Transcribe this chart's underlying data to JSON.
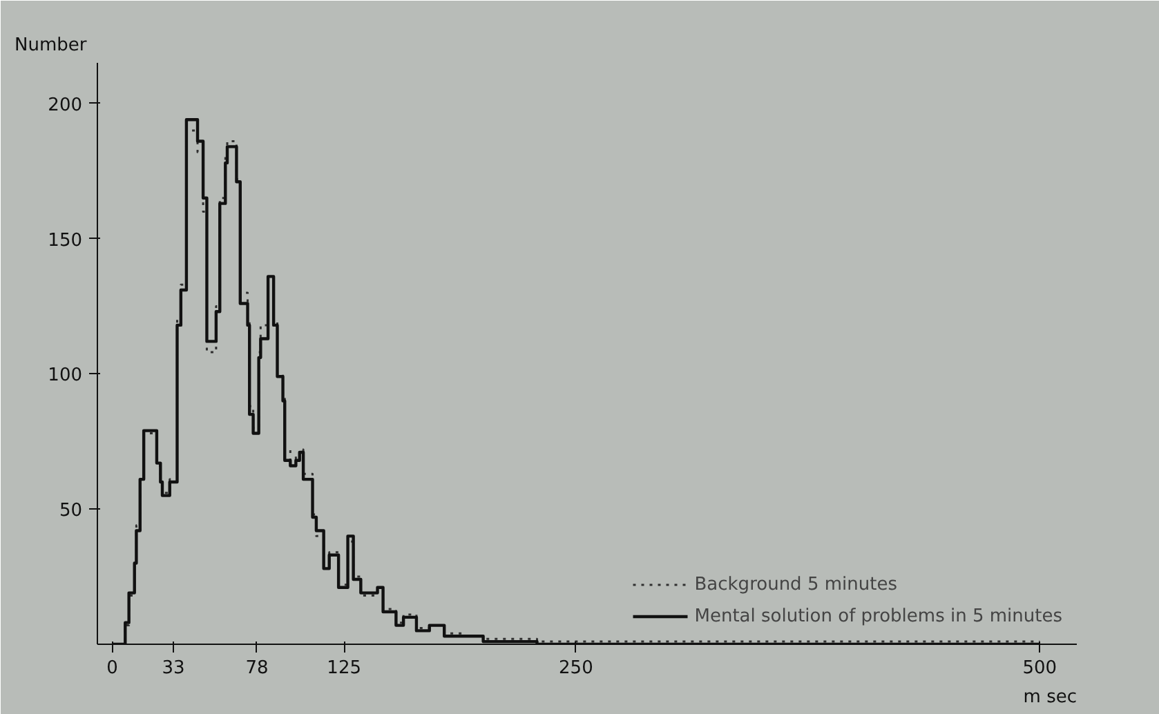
{
  "chart_data": {
    "type": "step",
    "xlabel": "m sec",
    "ylabel": "Number",
    "x": [
      0,
      4,
      7,
      9,
      12,
      13,
      15,
      17,
      24,
      26,
      27,
      31,
      35,
      37,
      40,
      46,
      49,
      51,
      56,
      58,
      61,
      62,
      67,
      69,
      73,
      74,
      76,
      79,
      80,
      84,
      87,
      89,
      92,
      93,
      96,
      99,
      101,
      103,
      108,
      110,
      114,
      117,
      122,
      127,
      130,
      134,
      143,
      146,
      153,
      157,
      164,
      171,
      179,
      189,
      200,
      229,
      260,
      300,
      350,
      400,
      450,
      500
    ],
    "series": [
      {
        "name": "Background 5 minutes",
        "color": "#303030",
        "line_style": "dotted",
        "values": [
          0,
          0,
          7,
          18,
          30,
          44,
          62,
          78,
          66,
          60,
          56,
          61,
          120,
          133,
          190,
          182,
          160,
          108,
          125,
          165,
          182,
          186,
          172,
          130,
          120,
          88,
          80,
          108,
          118,
          130,
          120,
          100,
          92,
          72,
          68,
          70,
          72,
          63,
          48,
          40,
          30,
          34,
          22,
          38,
          25,
          18,
          20,
          13,
          8,
          11,
          6,
          7,
          4,
          3,
          2,
          1,
          1,
          1,
          1,
          1,
          1,
          1
        ]
      },
      {
        "name": "Mental solution of problems in 5 minutes",
        "color": "#111111",
        "line_style": "solid",
        "values": [
          0,
          0,
          8,
          19,
          30,
          42,
          61,
          79,
          67,
          60,
          55,
          60,
          118,
          131,
          194,
          186,
          165,
          112,
          123,
          163,
          178,
          184,
          171,
          126,
          118,
          85,
          78,
          106,
          113,
          136,
          118,
          99,
          90,
          68,
          66,
          68,
          71,
          61,
          47,
          42,
          28,
          33,
          21,
          40,
          24,
          19,
          21,
          12,
          7,
          10,
          5,
          7,
          3,
          3,
          1,
          0,
          0,
          0,
          0,
          0,
          0,
          0
        ]
      }
    ],
    "xlim": [
      -8,
      520
    ],
    "ylim": [
      0,
      215
    ],
    "xticks": [
      0,
      33,
      78,
      125,
      250,
      500
    ],
    "yticks": [
      50,
      100,
      150,
      200
    ],
    "grid": false,
    "legend": "bottom right"
  }
}
